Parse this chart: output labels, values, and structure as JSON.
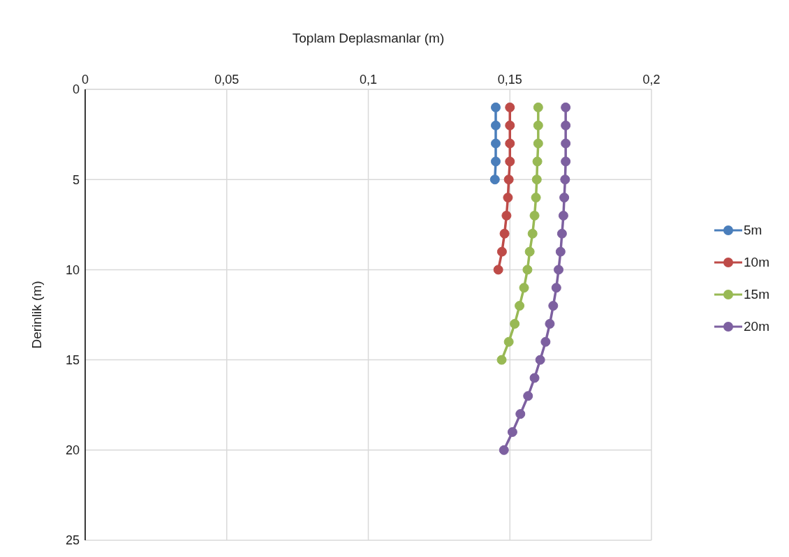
{
  "chart_data": {
    "type": "line",
    "xlabel": "Toplam Deplasmanlar (m)",
    "ylabel": "Derinlik (m)",
    "xlim": [
      0,
      0.2
    ],
    "xticks": [
      0,
      {
        "value": 0.05,
        "label": "0,05"
      },
      {
        "value": 0.1,
        "label": "0,1"
      },
      {
        "value": 0.15,
        "label": "0,15"
      },
      {
        "value": 0.2,
        "label": "0,2"
      }
    ],
    "ylim": [
      25,
      0
    ],
    "yticks": [
      0,
      5,
      10,
      15,
      20,
      25
    ],
    "grid": true,
    "legend": "right",
    "marker": "circle",
    "line_style": "solid",
    "series": [
      {
        "name": "5m",
        "color": "#4a7ebb",
        "x": [
          0.145,
          0.145,
          0.145,
          0.145,
          0.1447
        ],
        "values": [
          1,
          2,
          3,
          4,
          5
        ]
      },
      {
        "name": "10m",
        "color": "#be4b48",
        "x": [
          0.15,
          0.15,
          0.15,
          0.15,
          0.1496,
          0.1493,
          0.1488,
          0.1481,
          0.1472,
          0.1459
        ],
        "values": [
          1,
          2,
          3,
          4,
          5,
          6,
          7,
          8,
          9,
          10
        ]
      },
      {
        "name": "15m",
        "color": "#98b954",
        "x": [
          0.16,
          0.16,
          0.16,
          0.1597,
          0.1595,
          0.1592,
          0.1587,
          0.158,
          0.157,
          0.1562,
          0.155,
          0.1534,
          0.1517,
          0.1496,
          0.1471
        ],
        "values": [
          1,
          2,
          3,
          4,
          5,
          6,
          7,
          8,
          9,
          10,
          11,
          12,
          13,
          14,
          15
        ]
      },
      {
        "name": "20m",
        "color": "#7d60a0",
        "x": [
          0.1697,
          0.1697,
          0.1697,
          0.1697,
          0.1695,
          0.1692,
          0.1689,
          0.1684,
          0.1679,
          0.1672,
          0.1664,
          0.1653,
          0.1641,
          0.1626,
          0.1607,
          0.1587,
          0.1564,
          0.1537,
          0.1509,
          0.1479
        ],
        "values": [
          1,
          2,
          3,
          4,
          5,
          6,
          7,
          8,
          9,
          10,
          11,
          12,
          13,
          14,
          15,
          16,
          17,
          18,
          19,
          20
        ]
      }
    ]
  }
}
